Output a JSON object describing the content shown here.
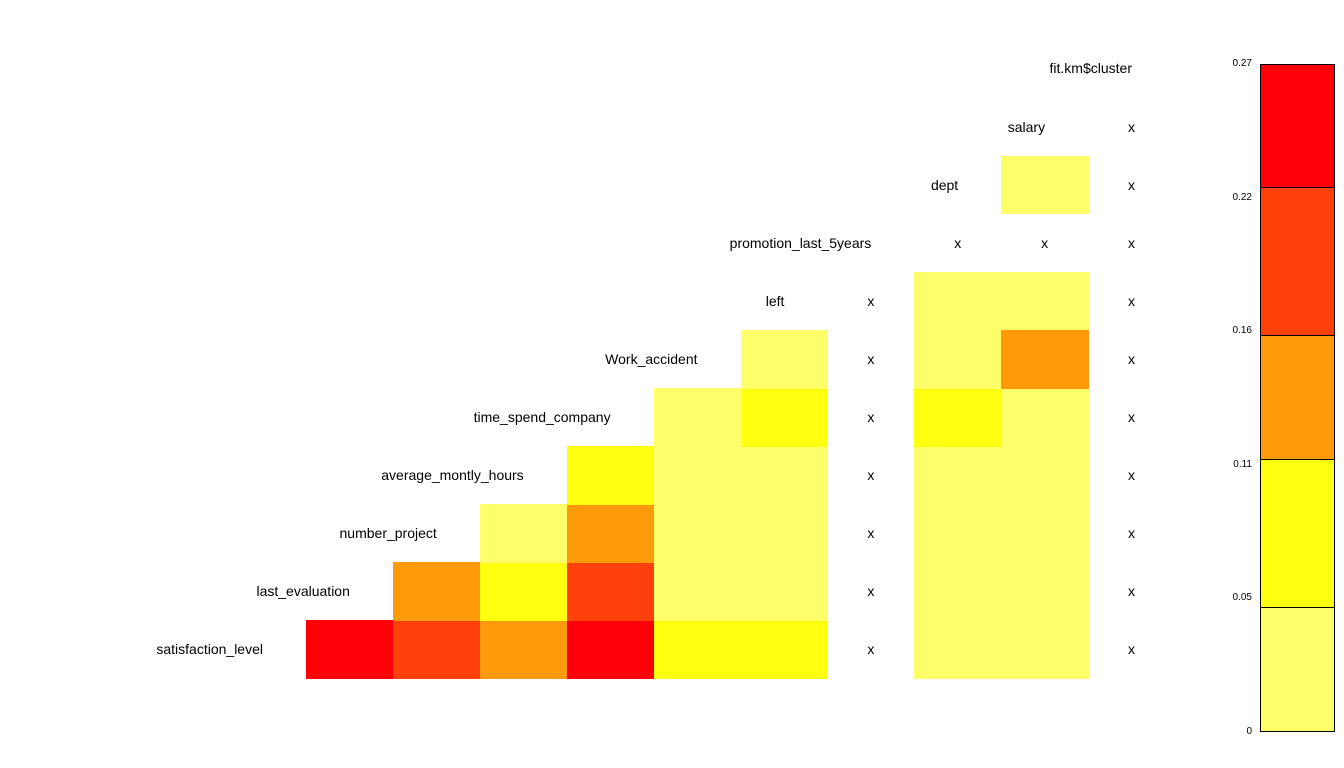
{
  "chart_data": {
    "type": "heatmap",
    "variables": [
      "satisfaction_level",
      "last_evaluation",
      "number_project",
      "average_montly_hours",
      "time_spend_company",
      "Work_accident",
      "left",
      "promotion_last_5years",
      "dept",
      "salary",
      "fit.km$cluster"
    ],
    "missing_mark": "x",
    "cells": [
      {
        "row": 0,
        "col": 0,
        "value": 0.25
      },
      {
        "row": 0,
        "col": 1,
        "value": 0.19
      },
      {
        "row": 0,
        "col": 2,
        "value": 0.14
      },
      {
        "row": 0,
        "col": 3,
        "value": 0.26
      },
      {
        "row": 0,
        "col": 4,
        "value": 0.08
      },
      {
        "row": 0,
        "col": 5,
        "value": 0.08
      },
      {
        "row": 0,
        "col": 6,
        "value": null
      },
      {
        "row": 0,
        "col": 7,
        "value": 0.02
      },
      {
        "row": 0,
        "col": 8,
        "value": 0.02
      },
      {
        "row": 0,
        "col": 9,
        "value": null
      },
      {
        "row": 1,
        "col": 1,
        "value": 0.14
      },
      {
        "row": 1,
        "col": 2,
        "value": 0.08
      },
      {
        "row": 1,
        "col": 3,
        "value": 0.19
      },
      {
        "row": 1,
        "col": 4,
        "value": 0.02
      },
      {
        "row": 1,
        "col": 5,
        "value": 0.02
      },
      {
        "row": 1,
        "col": 6,
        "value": null
      },
      {
        "row": 1,
        "col": 7,
        "value": 0.02
      },
      {
        "row": 1,
        "col": 8,
        "value": 0.02
      },
      {
        "row": 1,
        "col": 9,
        "value": null
      },
      {
        "row": 2,
        "col": 2,
        "value": 0.02
      },
      {
        "row": 2,
        "col": 3,
        "value": 0.14
      },
      {
        "row": 2,
        "col": 4,
        "value": 0.02
      },
      {
        "row": 2,
        "col": 5,
        "value": 0.02
      },
      {
        "row": 2,
        "col": 6,
        "value": null
      },
      {
        "row": 2,
        "col": 7,
        "value": 0.02
      },
      {
        "row": 2,
        "col": 8,
        "value": 0.02
      },
      {
        "row": 2,
        "col": 9,
        "value": null
      },
      {
        "row": 3,
        "col": 3,
        "value": 0.08
      },
      {
        "row": 3,
        "col": 4,
        "value": 0.02
      },
      {
        "row": 3,
        "col": 5,
        "value": 0.02
      },
      {
        "row": 3,
        "col": 6,
        "value": null
      },
      {
        "row": 3,
        "col": 7,
        "value": 0.02
      },
      {
        "row": 3,
        "col": 8,
        "value": 0.02
      },
      {
        "row": 3,
        "col": 9,
        "value": null
      },
      {
        "row": 4,
        "col": 4,
        "value": 0.02
      },
      {
        "row": 4,
        "col": 5,
        "value": 0.08
      },
      {
        "row": 4,
        "col": 6,
        "value": null
      },
      {
        "row": 4,
        "col": 7,
        "value": 0.08
      },
      {
        "row": 4,
        "col": 8,
        "value": 0.02
      },
      {
        "row": 4,
        "col": 9,
        "value": null
      },
      {
        "row": 5,
        "col": 5,
        "value": 0.02
      },
      {
        "row": 5,
        "col": 6,
        "value": null
      },
      {
        "row": 5,
        "col": 7,
        "value": 0.02
      },
      {
        "row": 5,
        "col": 8,
        "value": 0.14
      },
      {
        "row": 5,
        "col": 9,
        "value": null
      },
      {
        "row": 6,
        "col": 6,
        "value": null
      },
      {
        "row": 6,
        "col": 7,
        "value": 0.02
      },
      {
        "row": 6,
        "col": 8,
        "value": 0.02
      },
      {
        "row": 6,
        "col": 9,
        "value": null
      },
      {
        "row": 7,
        "col": 7,
        "value": null
      },
      {
        "row": 7,
        "col": 8,
        "value": null
      },
      {
        "row": 7,
        "col": 9,
        "value": null
      },
      {
        "row": 8,
        "col": 8,
        "value": 0.02
      },
      {
        "row": 8,
        "col": 9,
        "value": null
      },
      {
        "row": 9,
        "col": 9,
        "value": null
      }
    ],
    "colorbar": {
      "ticks": [
        "0",
        "0.05",
        "0.11",
        "0.16",
        "0.22",
        "0.27"
      ],
      "range": [
        0,
        0.27
      ],
      "bins": [
        {
          "from": 0,
          "to": 0.05,
          "color": "#FFFF6A"
        },
        {
          "from": 0.05,
          "to": 0.11,
          "color": "#FFFF10"
        },
        {
          "from": 0.11,
          "to": 0.16,
          "color": "#FF9A0A"
        },
        {
          "from": 0.16,
          "to": 0.22,
          "color": "#FF400A"
        },
        {
          "from": 0.22,
          "to": 0.27,
          "color": "#FF0008"
        }
      ]
    }
  }
}
